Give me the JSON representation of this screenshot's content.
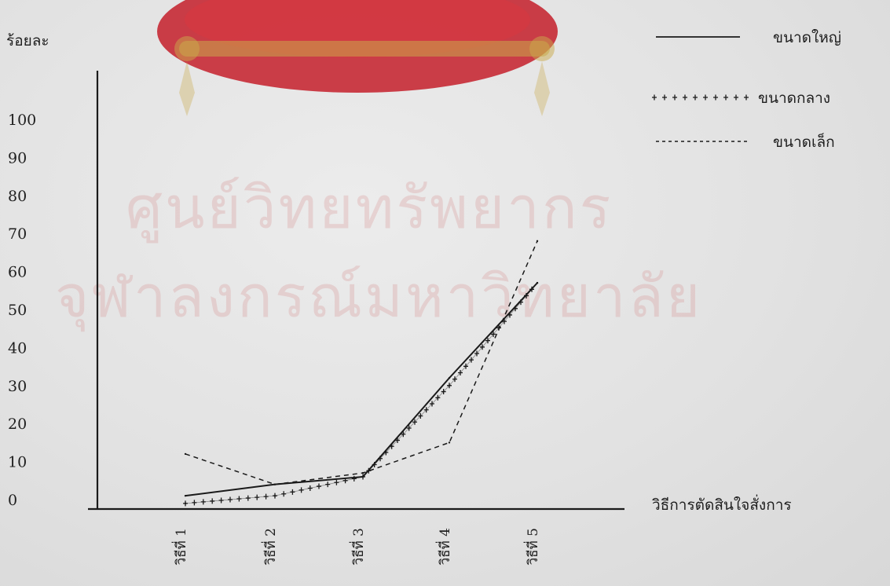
{
  "watermark": {
    "line1": "ศูนย์วิทยทรัพยากร",
    "line2": "จุฬาลงกรณ์มหาวิทยาลัย"
  },
  "chart_data": {
    "type": "line",
    "title": "",
    "ylabel": "ร้อยละ",
    "xlabel": "วิธีการตัดสินใจสั่งการ",
    "ylim": [
      0,
      100
    ],
    "yticks": [
      0,
      10,
      20,
      30,
      40,
      50,
      60,
      70,
      80,
      90,
      100
    ],
    "categories": [
      "วิธีที่ 1",
      "วิธีที่ 2",
      "วิธีที่ 3",
      "วิธีที่ 4",
      "วิธีที่ 5"
    ],
    "grid": false,
    "legend_position": "top-right",
    "series": [
      {
        "name": "ขนาดใหญ่",
        "style": "solid",
        "values": [
          1,
          4,
          6,
          32,
          57
        ]
      },
      {
        "name": "ขนาดกลาง",
        "style": "plus",
        "values": [
          -1,
          1,
          6,
          30,
          57
        ]
      },
      {
        "name": "ขนาดเล็ก",
        "style": "dashed",
        "values": [
          12,
          4,
          7,
          15,
          68
        ]
      }
    ]
  }
}
